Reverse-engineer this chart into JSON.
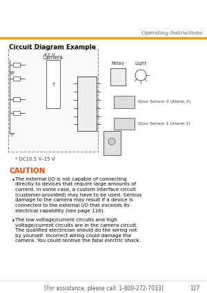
{
  "page_title": "Operating Instructions",
  "header_line_color": "#E8A020",
  "section_title": "Circuit Diagram Example",
  "caution_title": "CAUTION",
  "caution_color": "#FF4400",
  "bullet1": "The external I/O is not capable of connecting directly to devices that require large amounts of current. In some case, a custom interface circuit (customer-provided) may have to be used. Serious damage to the camera may result if a device is connected to the external I/O that exceeds its electrical capability (see page 116).",
  "bullet2": "The low voltage/current circuits and high voltage/current circuits are in the camera circuit. The qualified electrician should do the wiring not by yourself. Incorrect wiring could damage the camera. You could receive the fatal electric shock.",
  "footer_text": "[For assistance, please call: 1-800-272-7033]",
  "page_number": "117",
  "bg_color": "#FFFFFF",
  "text_color": "#000000",
  "diagram_bg": "#FFFFFF",
  "diagram_border": "#999999",
  "camera_label": "Camera",
  "relay_label": "Relay",
  "light_label": "Light",
  "dc_label": "* DC10.5 V–15 V",
  "sensor2_label": "Door Sensor 2 (Alarm 2)",
  "sensor1_label": "Door Sensor 1 (Alarm 1)",
  "voltage_label": "12 V"
}
